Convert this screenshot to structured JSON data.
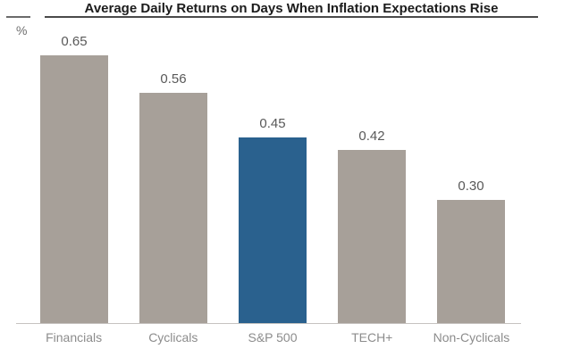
{
  "header": {
    "title": "Average Daily Returns on Days When Inflation Expectations Rise",
    "unit_label": "%"
  },
  "chart_data": {
    "type": "bar",
    "title": "Average Daily Returns on Days When Inflation Expectations Rise",
    "categories": [
      "Financials",
      "Cyclicals",
      "S&P 500",
      "TECH+",
      "Non-Cyclicals"
    ],
    "values": [
      0.65,
      0.56,
      0.45,
      0.42,
      0.3
    ],
    "value_labels": [
      "0.65",
      "0.56",
      "0.45",
      "0.42",
      "0.30"
    ],
    "xlabel": "",
    "ylabel": "%",
    "ylim": [
      0,
      0.72
    ],
    "grid": false,
    "legend": "none",
    "highlight_category": "S&P 500",
    "bar_color": "#a7a099",
    "highlight_color": "#2a618e"
  },
  "colors": {
    "background": "#ffffff",
    "title_text": "#1c1c1c",
    "title_underline": "#4a4a4a",
    "left_tick": "#6b6b6b",
    "value_label": "#595959",
    "category_label": "#8c8c8c",
    "axis_line": "#c6c3c0",
    "unit_label": "#6f6f6f"
  }
}
